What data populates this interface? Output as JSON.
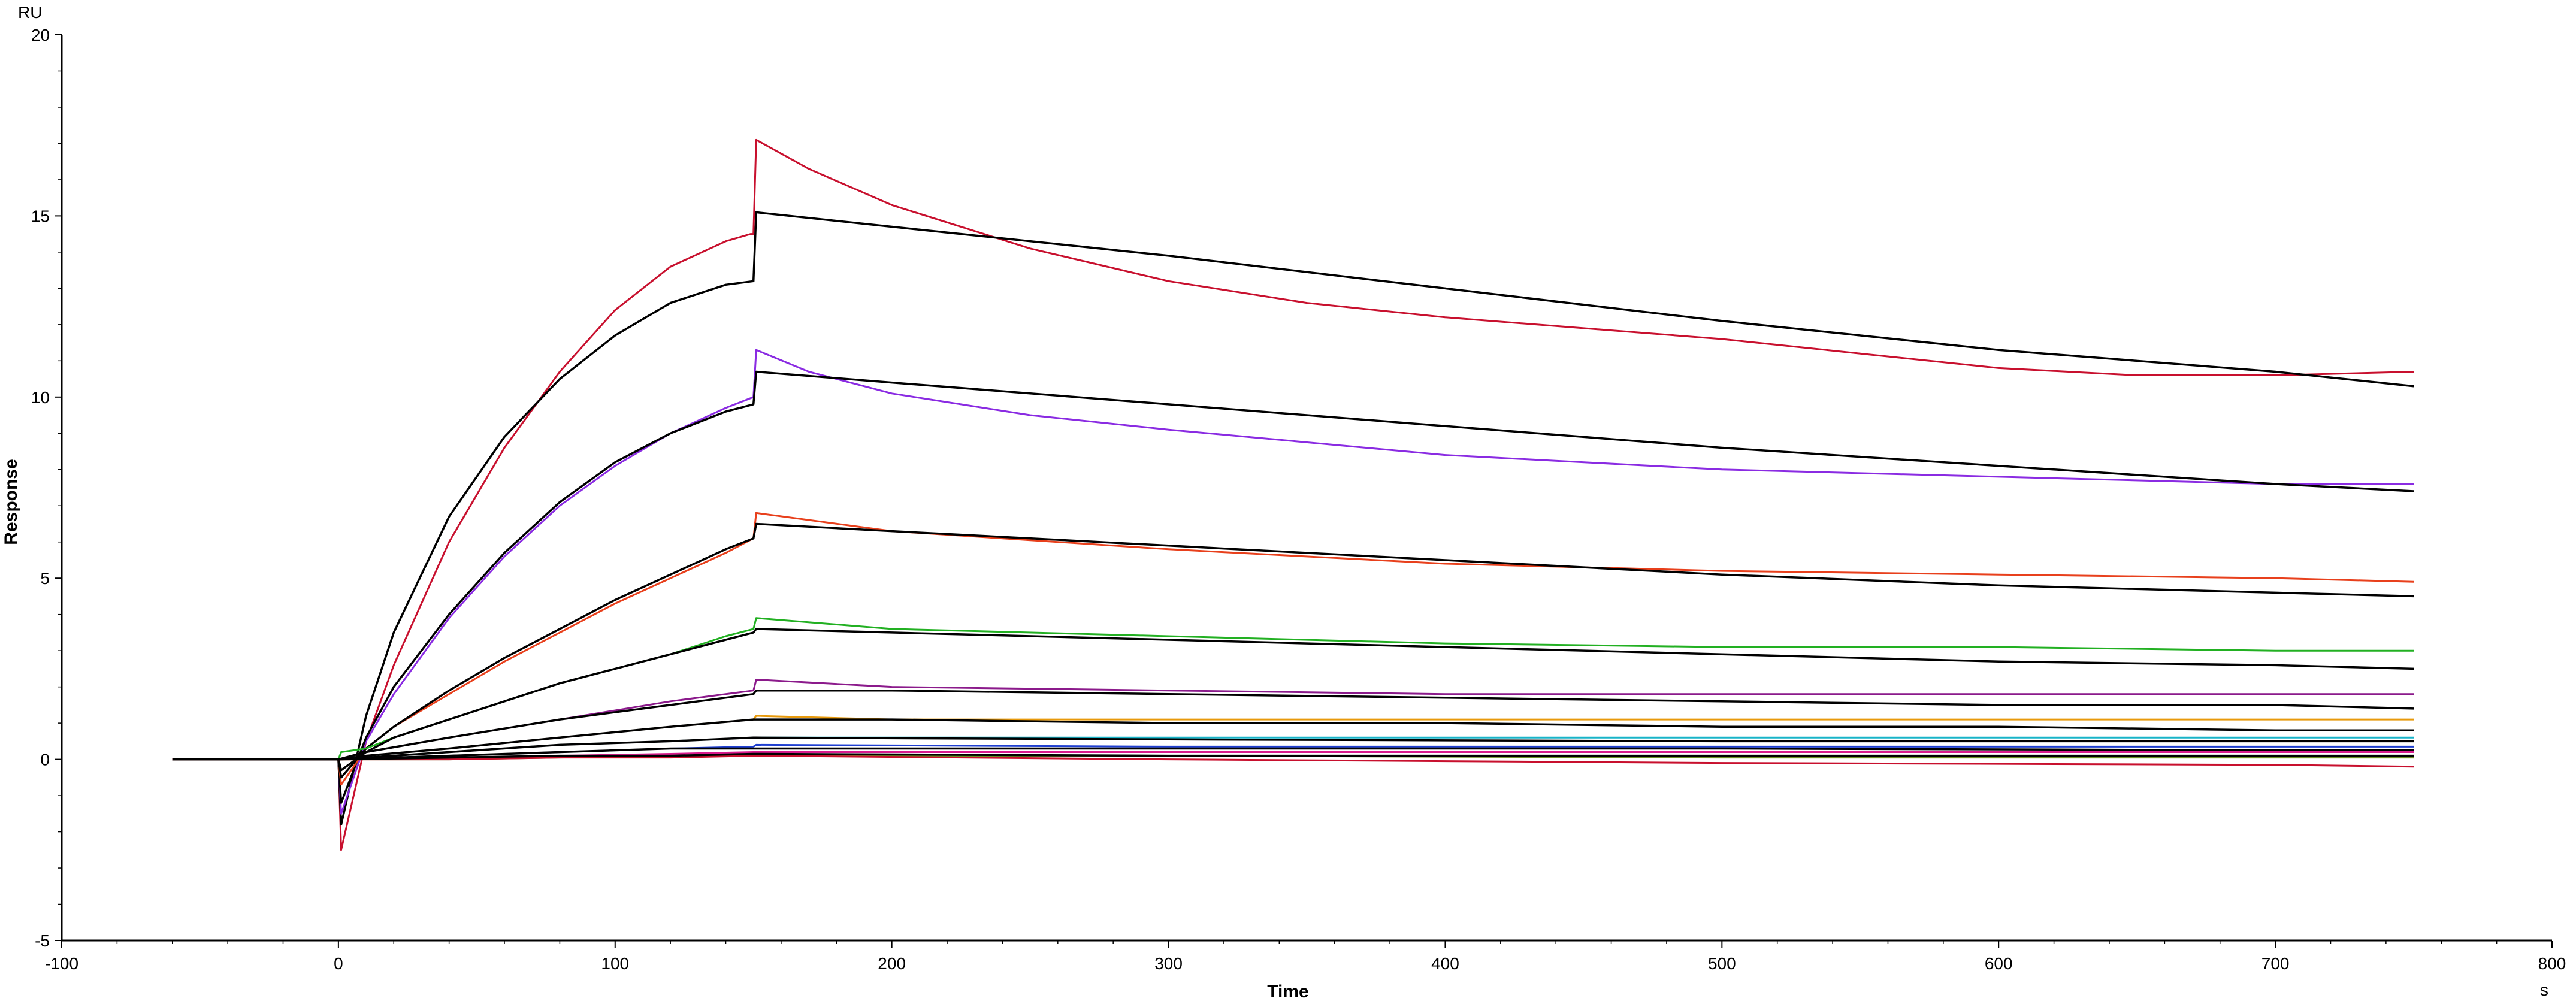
{
  "chart_data": {
    "type": "line",
    "title": "",
    "xlabel": "Time",
    "ylabel": "Response",
    "x_unit": "s",
    "y_unit": "RU",
    "xlim": [
      -100,
      800
    ],
    "ylim": [
      -5,
      20
    ],
    "x_ticks": [
      -100,
      0,
      100,
      200,
      300,
      400,
      500,
      600,
      700,
      800
    ],
    "y_ticks": [
      -5,
      0,
      5,
      10,
      15,
      20
    ],
    "grid": false,
    "legend": "none",
    "series": [
      {
        "color": "#c8102e",
        "type": "data",
        "x": [
          -60,
          0,
          1,
          10,
          20,
          40,
          60,
          80,
          100,
          120,
          140,
          149,
          150,
          151,
          170,
          200,
          250,
          300,
          350,
          400,
          450,
          500,
          550,
          600,
          650,
          700,
          750
        ],
        "y": [
          0,
          0,
          -2.5,
          0.5,
          2.6,
          6.0,
          8.6,
          10.7,
          12.4,
          13.6,
          14.3,
          14.5,
          14.5,
          17.1,
          16.3,
          15.3,
          14.1,
          13.2,
          12.6,
          12.2,
          11.9,
          11.6,
          11.2,
          10.8,
          10.6,
          10.6,
          10.7
        ]
      },
      {
        "color": "#000000",
        "type": "fit",
        "x": [
          -60,
          0,
          1,
          10,
          20,
          40,
          60,
          80,
          100,
          120,
          140,
          150,
          151,
          200,
          300,
          400,
          500,
          600,
          700,
          750
        ],
        "y": [
          0,
          0,
          -1.8,
          1.2,
          3.5,
          6.7,
          8.9,
          10.5,
          11.7,
          12.6,
          13.1,
          13.2,
          15.1,
          14.7,
          13.9,
          13.0,
          12.1,
          11.3,
          10.7,
          10.3
        ]
      },
      {
        "color": "#8a2be2",
        "type": "data",
        "x": [
          -60,
          0,
          1,
          10,
          20,
          40,
          60,
          80,
          100,
          120,
          140,
          150,
          151,
          170,
          200,
          250,
          300,
          400,
          500,
          600,
          700,
          750
        ],
        "y": [
          0,
          0,
          -1.5,
          0.5,
          1.8,
          3.9,
          5.6,
          7.0,
          8.1,
          9.0,
          9.7,
          10.0,
          11.3,
          10.7,
          10.1,
          9.5,
          9.1,
          8.4,
          8.0,
          7.8,
          7.6,
          7.6
        ]
      },
      {
        "color": "#000000",
        "type": "fit",
        "x": [
          -60,
          0,
          1,
          10,
          20,
          40,
          60,
          80,
          100,
          120,
          140,
          150,
          151,
          200,
          300,
          400,
          500,
          600,
          700,
          750
        ],
        "y": [
          0,
          0,
          -1.2,
          0.6,
          2.0,
          4.0,
          5.7,
          7.1,
          8.2,
          9.0,
          9.6,
          9.8,
          10.7,
          10.4,
          9.8,
          9.2,
          8.6,
          8.1,
          7.6,
          7.4
        ]
      },
      {
        "color": "#e8401c",
        "type": "data",
        "x": [
          -60,
          0,
          1,
          10,
          20,
          40,
          60,
          80,
          100,
          120,
          140,
          150,
          151,
          200,
          300,
          400,
          500,
          600,
          700,
          750
        ],
        "y": [
          0,
          0,
          -0.7,
          0.3,
          0.9,
          1.8,
          2.7,
          3.5,
          4.3,
          5.0,
          5.7,
          6.1,
          6.8,
          6.3,
          5.8,
          5.4,
          5.2,
          5.1,
          5.0,
          4.9
        ]
      },
      {
        "color": "#000000",
        "type": "fit",
        "x": [
          -60,
          0,
          1,
          10,
          20,
          40,
          60,
          80,
          100,
          120,
          140,
          150,
          151,
          200,
          300,
          400,
          500,
          600,
          700,
          750
        ],
        "y": [
          0,
          0,
          -0.5,
          0.3,
          0.9,
          1.9,
          2.8,
          3.6,
          4.4,
          5.1,
          5.8,
          6.1,
          6.5,
          6.3,
          5.9,
          5.5,
          5.1,
          4.8,
          4.6,
          4.5
        ]
      },
      {
        "color": "#22b022",
        "type": "data",
        "x": [
          -60,
          0,
          1,
          10,
          20,
          40,
          60,
          80,
          100,
          120,
          140,
          150,
          151,
          200,
          300,
          400,
          500,
          600,
          700,
          750
        ],
        "y": [
          0,
          0,
          0.2,
          0.3,
          0.6,
          1.1,
          1.6,
          2.1,
          2.5,
          2.9,
          3.4,
          3.6,
          3.9,
          3.6,
          3.4,
          3.2,
          3.1,
          3.1,
          3.0,
          3.0
        ]
      },
      {
        "color": "#000000",
        "type": "fit",
        "x": [
          -60,
          0,
          1,
          10,
          20,
          40,
          60,
          80,
          100,
          120,
          140,
          150,
          151,
          200,
          300,
          400,
          500,
          600,
          700,
          750
        ],
        "y": [
          0,
          0,
          -0.3,
          0.2,
          0.6,
          1.1,
          1.6,
          2.1,
          2.5,
          2.9,
          3.3,
          3.5,
          3.6,
          3.5,
          3.3,
          3.1,
          2.9,
          2.7,
          2.6,
          2.5
        ]
      },
      {
        "color": "#8b1a8b",
        "type": "data",
        "x": [
          -60,
          0,
          10,
          40,
          80,
          120,
          150,
          151,
          200,
          300,
          400,
          500,
          600,
          700,
          750
        ],
        "y": [
          0,
          0,
          0.2,
          0.6,
          1.1,
          1.6,
          1.9,
          2.2,
          2.0,
          1.9,
          1.8,
          1.8,
          1.8,
          1.8,
          1.8
        ]
      },
      {
        "color": "#000000",
        "type": "fit",
        "x": [
          -60,
          0,
          10,
          40,
          80,
          120,
          150,
          151,
          200,
          300,
          400,
          500,
          600,
          700,
          750
        ],
        "y": [
          0,
          0,
          0.2,
          0.6,
          1.1,
          1.5,
          1.8,
          1.9,
          1.9,
          1.8,
          1.7,
          1.6,
          1.5,
          1.5,
          1.4
        ]
      },
      {
        "color": "#e89a0c",
        "type": "data",
        "x": [
          -60,
          0,
          10,
          40,
          80,
          120,
          150,
          151,
          200,
          300,
          400,
          500,
          600,
          700,
          750
        ],
        "y": [
          0,
          0,
          0.1,
          0.3,
          0.6,
          0.9,
          1.1,
          1.2,
          1.1,
          1.1,
          1.1,
          1.1,
          1.1,
          1.1,
          1.1
        ]
      },
      {
        "color": "#000000",
        "type": "fit",
        "x": [
          -60,
          0,
          10,
          40,
          80,
          120,
          150,
          151,
          200,
          300,
          400,
          500,
          600,
          700,
          750
        ],
        "y": [
          0,
          0,
          0.1,
          0.3,
          0.6,
          0.9,
          1.1,
          1.1,
          1.1,
          1.0,
          1.0,
          0.9,
          0.9,
          0.8,
          0.8
        ]
      },
      {
        "color": "#18b4c8",
        "type": "data",
        "x": [
          -60,
          0,
          40,
          80,
          120,
          150,
          151,
          300,
          500,
          700,
          750
        ],
        "y": [
          0,
          0,
          0.2,
          0.4,
          0.5,
          0.6,
          0.6,
          0.6,
          0.6,
          0.6,
          0.6
        ]
      },
      {
        "color": "#000000",
        "type": "fit",
        "x": [
          -60,
          0,
          40,
          80,
          120,
          150,
          151,
          300,
          500,
          700,
          750
        ],
        "y": [
          0,
          0,
          0.2,
          0.4,
          0.5,
          0.6,
          0.6,
          0.55,
          0.5,
          0.5,
          0.5
        ]
      },
      {
        "color": "#1f3fd0",
        "type": "data",
        "x": [
          -60,
          0,
          40,
          80,
          120,
          150,
          151,
          300,
          500,
          700,
          750
        ],
        "y": [
          0,
          0,
          0.1,
          0.2,
          0.3,
          0.35,
          0.4,
          0.35,
          0.35,
          0.35,
          0.35
        ]
      },
      {
        "color": "#000000",
        "type": "fit",
        "x": [
          -60,
          0,
          40,
          80,
          120,
          150,
          151,
          300,
          500,
          700,
          750
        ],
        "y": [
          0,
          0,
          0.1,
          0.2,
          0.3,
          0.3,
          0.3,
          0.3,
          0.3,
          0.25,
          0.25
        ]
      },
      {
        "color": "#d81b8c",
        "type": "data",
        "x": [
          -60,
          0,
          40,
          80,
          120,
          150,
          151,
          300,
          500,
          700,
          750
        ],
        "y": [
          0,
          0,
          0.05,
          0.1,
          0.15,
          0.2,
          0.2,
          0.2,
          0.2,
          0.2,
          0.2
        ]
      },
      {
        "color": "#6b8e23",
        "type": "data",
        "x": [
          -60,
          0,
          40,
          80,
          120,
          150,
          151,
          300,
          500,
          700,
          750
        ],
        "y": [
          0,
          0,
          0.0,
          0.05,
          0.1,
          0.1,
          0.1,
          0.1,
          0.05,
          0.05,
          0.05
        ]
      },
      {
        "color": "#c8102e",
        "type": "data",
        "x": [
          -60,
          0,
          40,
          80,
          120,
          150,
          151,
          300,
          500,
          700,
          750
        ],
        "y": [
          0,
          0,
          0.0,
          0.05,
          0.05,
          0.1,
          0.1,
          0.0,
          -0.1,
          -0.15,
          -0.2
        ]
      },
      {
        "color": "#000000",
        "type": "fit",
        "x": [
          -60,
          0,
          40,
          80,
          120,
          150,
          151,
          300,
          500,
          700,
          750
        ],
        "y": [
          0,
          0,
          0.05,
          0.1,
          0.1,
          0.15,
          0.15,
          0.1,
          0.1,
          0.1,
          0.1
        ]
      }
    ]
  }
}
